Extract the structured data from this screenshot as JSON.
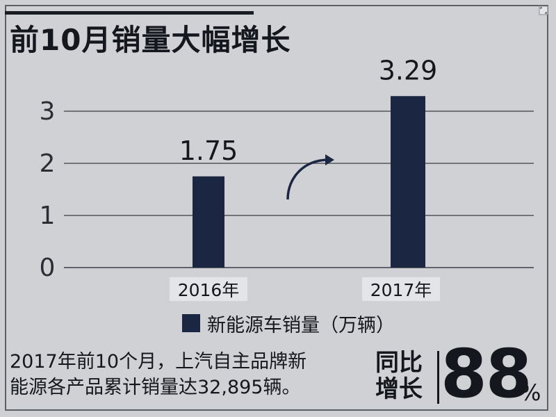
{
  "header": {
    "title": "前10月销量大幅增长"
  },
  "chart_data": {
    "type": "bar",
    "categories": [
      "2016年",
      "2017年"
    ],
    "values": [
      1.75,
      3.29
    ],
    "data_labels": [
      "1.75",
      "3.29"
    ],
    "series": [
      {
        "name": "新能源车销量（万辆）",
        "values": [
          1.75,
          3.29
        ]
      }
    ],
    "yticks": [
      0,
      1,
      2,
      3
    ],
    "ylim": [
      0,
      3.3
    ],
    "grid": true,
    "legend": "bottom",
    "bar_color": "#1b2742",
    "axis_color": "#3a3e45"
  },
  "legend": {
    "label": "新能源车销量（万辆）"
  },
  "note": {
    "line1": "2017年前10个月，上汽自主品牌新",
    "line2": "能源各产品累计销量达32,895辆。"
  },
  "yoy": {
    "label_line1": "同比",
    "label_line2": "增长",
    "value": "88",
    "unit": "%"
  },
  "icons": {
    "corner": "expand-icon",
    "trend": "curved-arrow-icon"
  }
}
